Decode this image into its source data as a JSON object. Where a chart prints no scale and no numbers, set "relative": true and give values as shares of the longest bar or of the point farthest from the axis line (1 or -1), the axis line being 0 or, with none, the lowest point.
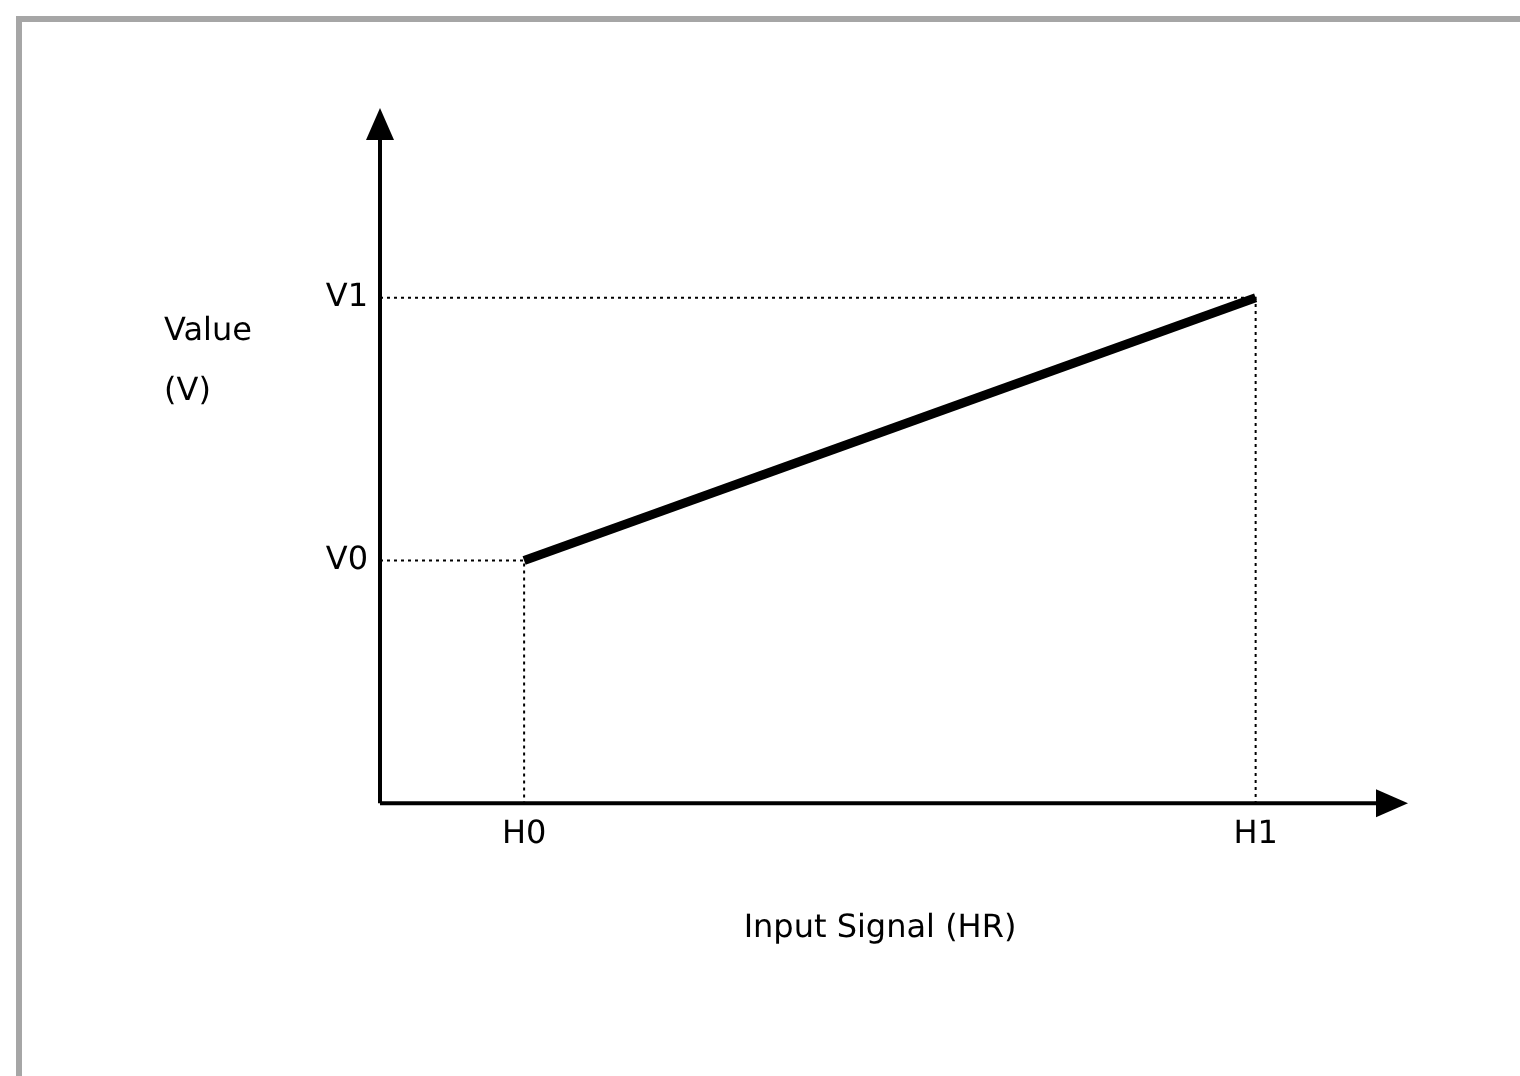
{
  "chart_data": {
    "type": "line",
    "xlabel": "Input Signal (HR)",
    "ylabel": "Value (V)",
    "categories": [
      "H0",
      "H1"
    ],
    "relative": true,
    "series": [
      {
        "color": "#000000",
        "values": [
          0.48,
          1
        ]
      }
    ],
    "annotations": [
      "V0",
      "V1"
    ],
    "grid": false,
    "marker": "none",
    "line_style": "solid",
    "legend": false
  }
}
